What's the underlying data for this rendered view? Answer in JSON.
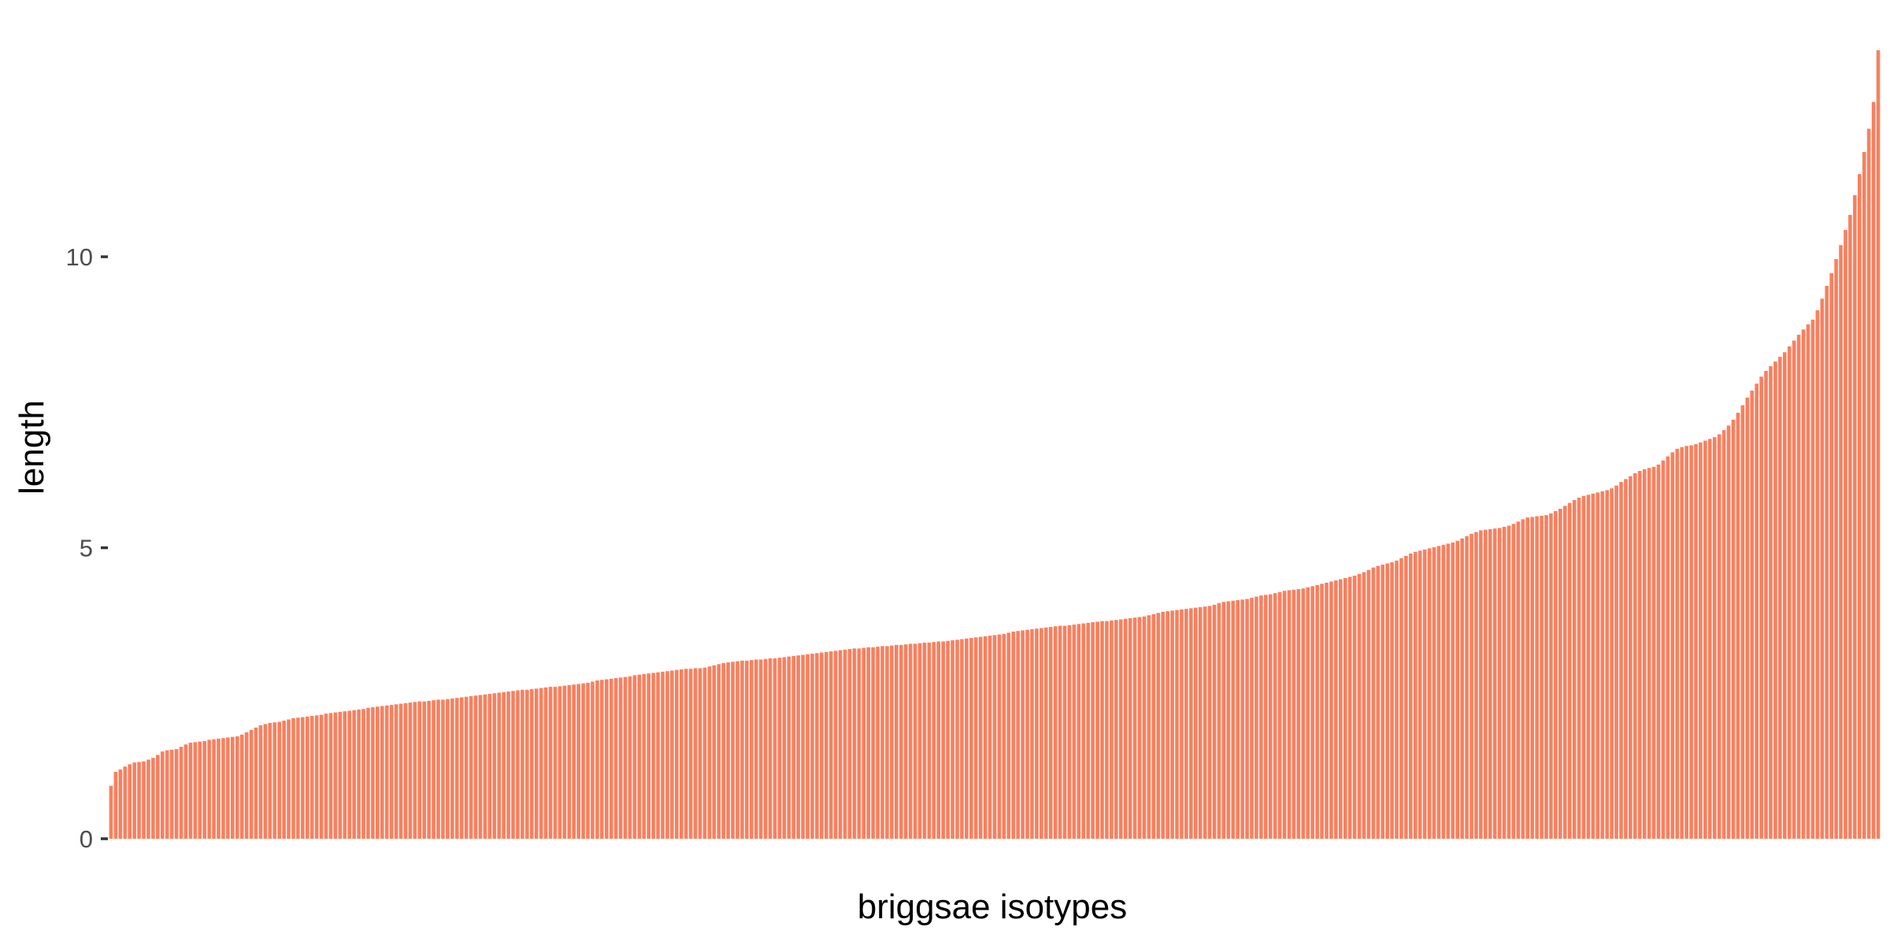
{
  "chart_data": {
    "type": "bar",
    "title": "",
    "xlabel": "briggsae isotypes",
    "ylabel": "length",
    "ylim": [
      0,
      13.6
    ],
    "y_ticks": [
      0,
      5,
      10
    ],
    "y_tick_labels": [
      "0",
      "5",
      "10"
    ],
    "x_tick_labels": [],
    "grid": false,
    "legend": "none",
    "bar_color": "#F8805F",
    "sorted": "ascending",
    "series": [
      {
        "values": [
          0.91,
          1.15,
          1.19,
          1.24,
          1.28,
          1.31,
          1.32,
          1.33,
          1.36,
          1.39,
          1.44,
          1.5,
          1.52,
          1.53,
          1.54,
          1.58,
          1.62,
          1.65,
          1.66,
          1.67,
          1.68,
          1.7,
          1.71,
          1.72,
          1.73,
          1.74,
          1.75,
          1.76,
          1.79,
          1.83,
          1.87,
          1.91,
          1.95,
          1.97,
          1.99,
          2.0,
          2.01,
          2.03,
          2.05,
          2.07,
          2.08,
          2.09,
          2.1,
          2.11,
          2.12,
          2.13,
          2.15,
          2.16,
          2.17,
          2.18,
          2.19,
          2.2,
          2.21,
          2.22,
          2.23,
          2.25,
          2.26,
          2.27,
          2.28,
          2.29,
          2.3,
          2.31,
          2.32,
          2.33,
          2.34,
          2.35,
          2.36,
          2.36,
          2.37,
          2.38,
          2.39,
          2.39,
          2.4,
          2.41,
          2.42,
          2.43,
          2.44,
          2.45,
          2.46,
          2.47,
          2.48,
          2.49,
          2.5,
          2.51,
          2.52,
          2.53,
          2.54,
          2.55,
          2.56,
          2.56,
          2.57,
          2.58,
          2.59,
          2.6,
          2.61,
          2.61,
          2.62,
          2.63,
          2.64,
          2.65,
          2.66,
          2.67,
          2.68,
          2.7,
          2.72,
          2.73,
          2.74,
          2.75,
          2.76,
          2.77,
          2.78,
          2.79,
          2.81,
          2.82,
          2.83,
          2.84,
          2.85,
          2.86,
          2.87,
          2.88,
          2.89,
          2.9,
          2.91,
          2.92,
          2.92,
          2.93,
          2.93,
          2.94,
          2.96,
          2.98,
          3.0,
          3.02,
          3.03,
          3.04,
          3.05,
          3.06,
          3.06,
          3.07,
          3.08,
          3.08,
          3.09,
          3.1,
          3.1,
          3.11,
          3.12,
          3.13,
          3.14,
          3.15,
          3.16,
          3.17,
          3.18,
          3.19,
          3.2,
          3.21,
          3.22,
          3.23,
          3.24,
          3.25,
          3.26,
          3.27,
          3.27,
          3.28,
          3.29,
          3.29,
          3.3,
          3.31,
          3.31,
          3.32,
          3.33,
          3.33,
          3.34,
          3.35,
          3.35,
          3.36,
          3.37,
          3.37,
          3.38,
          3.39,
          3.39,
          3.4,
          3.41,
          3.42,
          3.43,
          3.44,
          3.45,
          3.46,
          3.47,
          3.48,
          3.49,
          3.5,
          3.51,
          3.52,
          3.54,
          3.56,
          3.57,
          3.58,
          3.59,
          3.6,
          3.61,
          3.62,
          3.63,
          3.64,
          3.65,
          3.66,
          3.66,
          3.67,
          3.68,
          3.69,
          3.7,
          3.71,
          3.72,
          3.73,
          3.74,
          3.74,
          3.75,
          3.76,
          3.77,
          3.78,
          3.79,
          3.8,
          3.81,
          3.82,
          3.84,
          3.86,
          3.88,
          3.9,
          3.91,
          3.92,
          3.93,
          3.94,
          3.95,
          3.96,
          3.97,
          3.98,
          3.99,
          4.0,
          4.02,
          4.05,
          4.07,
          4.08,
          4.09,
          4.1,
          4.11,
          4.12,
          4.14,
          4.16,
          4.18,
          4.19,
          4.2,
          4.22,
          4.24,
          4.26,
          4.27,
          4.28,
          4.29,
          4.3,
          4.32,
          4.34,
          4.36,
          4.38,
          4.4,
          4.42,
          4.44,
          4.46,
          4.48,
          4.5,
          4.52,
          4.55,
          4.58,
          4.62,
          4.66,
          4.69,
          4.71,
          4.73,
          4.75,
          4.78,
          4.82,
          4.86,
          4.9,
          4.93,
          4.95,
          4.97,
          4.99,
          5.01,
          5.03,
          5.05,
          5.07,
          5.09,
          5.12,
          5.16,
          5.2,
          5.24,
          5.27,
          5.3,
          5.31,
          5.32,
          5.33,
          5.34,
          5.36,
          5.38,
          5.41,
          5.45,
          5.49,
          5.52,
          5.53,
          5.54,
          5.55,
          5.56,
          5.59,
          5.63,
          5.67,
          5.72,
          5.77,
          5.82,
          5.86,
          5.89,
          5.91,
          5.93,
          5.95,
          5.97,
          5.99,
          6.02,
          6.07,
          6.13,
          6.18,
          6.23,
          6.28,
          6.32,
          6.35,
          6.37,
          6.39,
          6.43,
          6.5,
          6.57,
          6.64,
          6.7,
          6.73,
          6.75,
          6.76,
          6.78,
          6.81,
          6.84,
          6.87,
          6.9,
          6.95,
          7.02,
          7.1,
          7.2,
          7.32,
          7.45,
          7.58,
          7.7,
          7.82,
          7.94,
          8.04,
          8.12,
          8.2,
          8.28,
          8.36,
          8.46,
          8.56,
          8.66,
          8.75,
          8.84,
          8.92,
          9.08,
          9.28,
          9.5,
          9.72,
          9.96,
          10.2,
          10.46,
          10.72,
          11.06,
          11.42,
          11.8,
          12.2,
          12.66,
          13.55
        ]
      }
    ]
  }
}
